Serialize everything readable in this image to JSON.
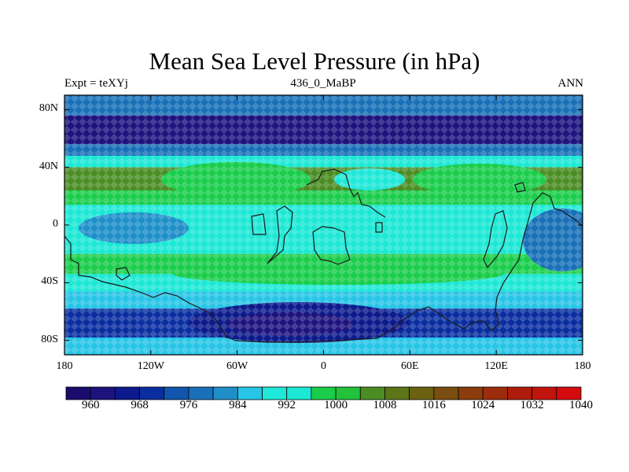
{
  "title": "Mean Sea Level Pressure (in hPa)",
  "subtitle_left": "Expt = teXYj",
  "subtitle_center": "436_0_MaBP",
  "subtitle_right": "ANN",
  "map": {
    "projection": "cylindrical equidistant",
    "lon_range": [
      -180,
      180
    ],
    "lat_range": [
      -90,
      90
    ],
    "lat_ticks": [
      {
        "label": "80N",
        "value": 80
      },
      {
        "label": "40N",
        "value": 40
      },
      {
        "label": "0",
        "value": 0
      },
      {
        "label": "40S",
        "value": -40
      },
      {
        "label": "80S",
        "value": -80
      }
    ],
    "lon_ticks": [
      {
        "label": "180",
        "value": -180
      },
      {
        "label": "120W",
        "value": -120
      },
      {
        "label": "60W",
        "value": -60
      },
      {
        "label": "0",
        "value": 0
      },
      {
        "label": "60E",
        "value": 60
      },
      {
        "label": "120E",
        "value": 120
      },
      {
        "label": "180",
        "value": 180
      }
    ],
    "pressure_bands": [
      {
        "lat": [
          90,
          76
        ],
        "hpa": 976
      },
      {
        "lat": [
          76,
          56
        ],
        "hpa": 962
      },
      {
        "lat": [
          56,
          48
        ],
        "hpa": 978
      },
      {
        "lat": [
          48,
          40
        ],
        "hpa": 992
      },
      {
        "lat": [
          40,
          24
        ],
        "hpa": 1004
      },
      {
        "lat": [
          24,
          14
        ],
        "hpa": 996
      },
      {
        "lat": [
          14,
          -20
        ],
        "hpa": 992
      },
      {
        "lat": [
          -20,
          -34
        ],
        "hpa": 996
      },
      {
        "lat": [
          -34,
          -46
        ],
        "hpa": 992
      },
      {
        "lat": [
          -46,
          -58
        ],
        "hpa": 984
      },
      {
        "lat": [
          -58,
          -78
        ],
        "hpa": 970
      },
      {
        "lat": [
          -78,
          -90
        ],
        "hpa": 986
      }
    ]
  },
  "colorbar": {
    "colors": [
      "#1a0d6e",
      "#1d137e",
      "#0c1a8c",
      "#0a2ea0",
      "#1256ad",
      "#1970b8",
      "#1f8fc9",
      "#27c5e6",
      "#1fe8d8",
      "#1ce8d5",
      "#1acd4a",
      "#22c23b",
      "#4b8d24",
      "#5c7517",
      "#6a6212",
      "#7a4d10",
      "#8c3d0d",
      "#9c2c0b",
      "#ae1c0b",
      "#c0140d",
      "#d40c10"
    ],
    "labels": [
      "960",
      "968",
      "976",
      "984",
      "992",
      "1000",
      "1008",
      "1016",
      "1024",
      "1032",
      "1040"
    ],
    "min": 956,
    "step": 4
  }
}
